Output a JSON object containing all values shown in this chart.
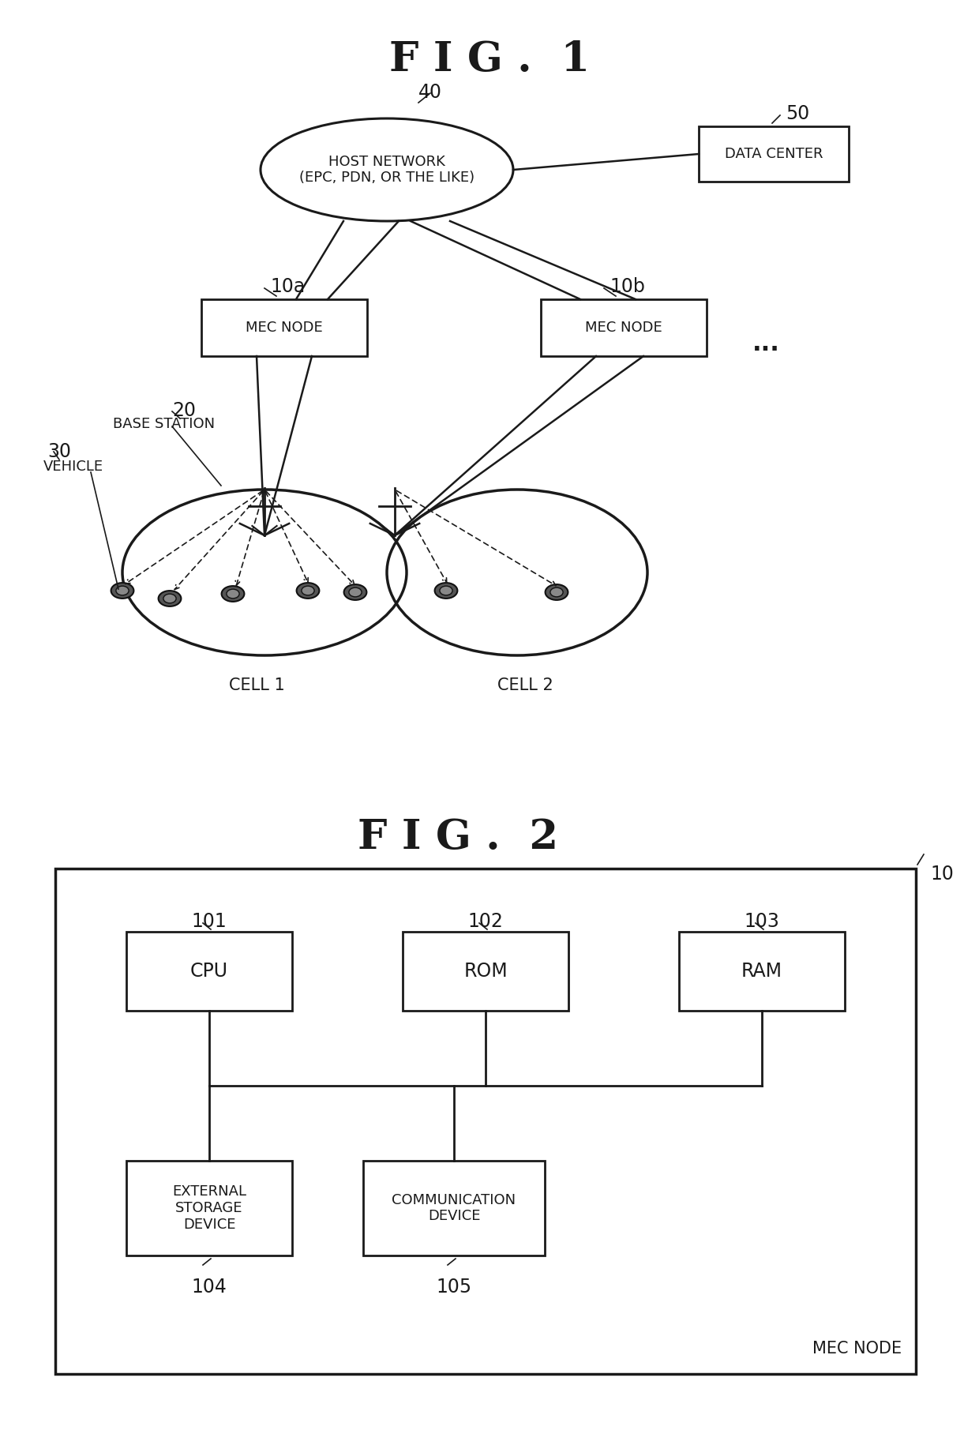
{
  "fig1_title": "F I G .  1",
  "fig2_title": "F I G .  2",
  "bg_color": "#ffffff",
  "line_color": "#1a1a1a",
  "text_color": "#1a1a1a",
  "fig1": {
    "host_network_label": "HOST NETWORK\n(EPC, PDN, OR THE LIKE)",
    "host_network_ref": "40",
    "data_center_label": "DATA CENTER",
    "data_center_ref": "50",
    "mec_node_a_label": "MEC NODE",
    "mec_node_a_ref": "10a",
    "mec_node_b_label": "MEC NODE",
    "mec_node_b_ref": "10b",
    "base_station_label": "BASE STATION",
    "base_station_ref": "20",
    "vehicle_label": "VEHICLE",
    "vehicle_ref": "30",
    "cell1_label": "CELL 1",
    "cell2_label": "CELL 2",
    "dots": "..."
  },
  "fig2": {
    "cpu_label": "CPU",
    "cpu_ref": "101",
    "rom_label": "ROM",
    "rom_ref": "102",
    "ram_label": "RAM",
    "ram_ref": "103",
    "ext_storage_label": "EXTERNAL\nSTORAGE\nDEVICE",
    "ext_storage_ref": "104",
    "comm_device_label": "COMMUNICATION\nDEVICE",
    "comm_device_ref": "105",
    "mec_node_label": "MEC NODE",
    "mec_node_ref": "10"
  }
}
